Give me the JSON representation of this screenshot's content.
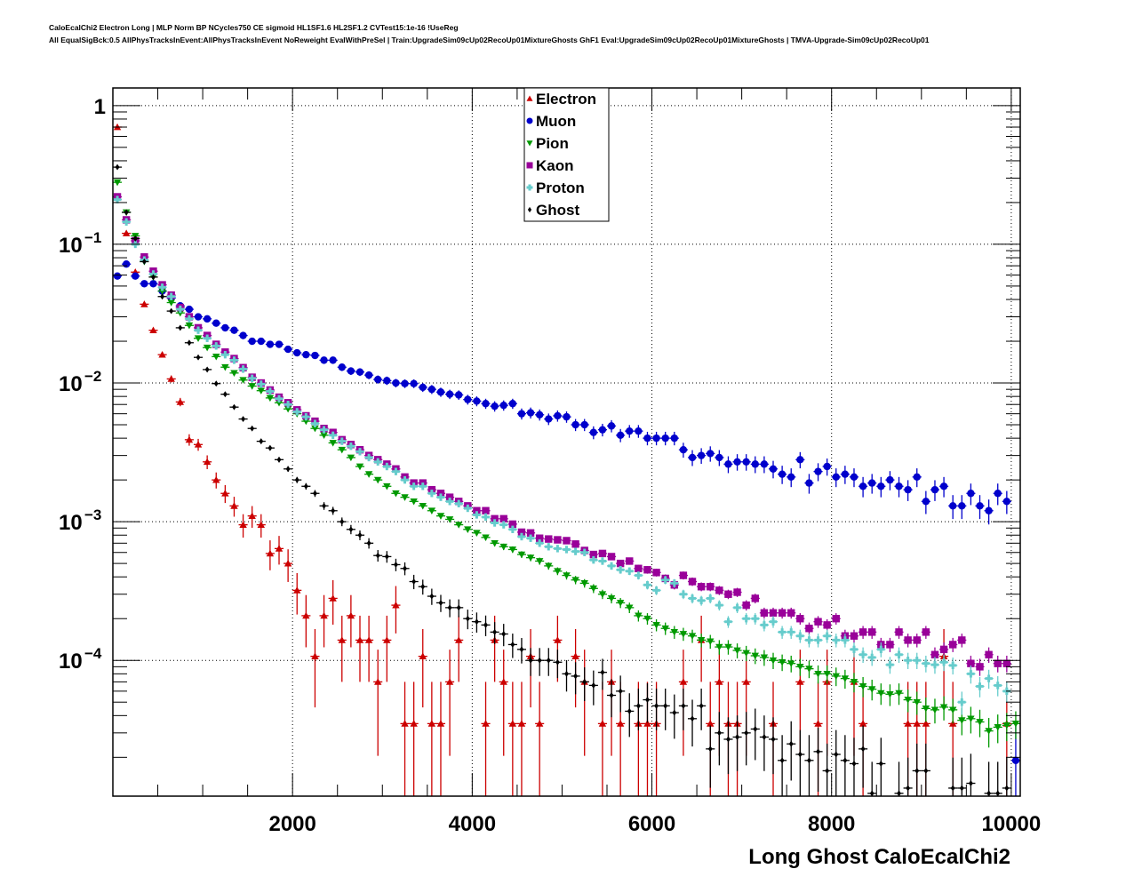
{
  "header": {
    "line1": "CaloEcalChi2 Electron Long | MLP Norm BP NCycles750 CE sigmoid HL1SF1.6 HL2SF1.2 CVTest15:1e-16 !UseReg",
    "line2": "All EqualSigBck:0.5 AllPhysTracksInEvent:AllPhysTracksInEvent NoReweight EvalWithPreSel | Train:UpgradeSim09cUp02RecoUp01MixtureGhosts GhF1 Eval:UpgradeSim09cUp02RecoUp01MixtureGhosts | TMVA-Upgrade-Sim09cUp02RecoUp01"
  },
  "chart_data": {
    "type": "scatter",
    "title": "",
    "xlabel": "Long Ghost CaloEcalChi2",
    "ylabel": "",
    "yscale": "log",
    "xlim": [
      0,
      10100
    ],
    "ylim": [
      1.05e-05,
      1.34
    ],
    "grid": true,
    "legend_position": "top-center",
    "bin_width": 100,
    "x_ticks": [
      {
        "value": 2000,
        "label": "2000"
      },
      {
        "value": 4000,
        "label": "4000"
      },
      {
        "value": 6000,
        "label": "6000"
      },
      {
        "value": 8000,
        "label": "8000"
      },
      {
        "value": 10000,
        "label": "10000"
      }
    ],
    "y_ticks": [
      {
        "value": 1,
        "base": "1",
        "exp": ""
      },
      {
        "value": 0.1,
        "base": "10",
        "exp": "−1"
      },
      {
        "value": 0.01,
        "base": "10",
        "exp": "−2"
      },
      {
        "value": 0.001,
        "base": "10",
        "exp": "−3"
      },
      {
        "value": 0.0001,
        "base": "10",
        "exp": "−4"
      }
    ],
    "series": [
      {
        "name": "Electron",
        "color": "#cc0000",
        "marker": "triangle-up",
        "values": [
          0.7,
          0.12,
          0.063,
          0.037,
          0.024,
          0.016,
          0.0107,
          0.0073,
          0.0039,
          0.0036,
          0.0027,
          0.002,
          0.0016,
          0.0013,
          0.00095,
          0.0011,
          0.00095,
          0.00059,
          0.00064,
          0.0005,
          0.00032,
          0.00021,
          0.000107,
          0.00021,
          0.00028,
          0.00014,
          0.00021,
          0.00014,
          0.00014,
          7e-05,
          0.00014,
          0.00025,
          3.5e-05,
          3.5e-05,
          0.000107,
          3.5e-05,
          3.5e-05,
          7e-05,
          0.00014,
          null,
          null,
          3.5e-05,
          0.00014,
          7e-05,
          3.5e-05,
          3.5e-05,
          0.000107,
          3.5e-05,
          null,
          0.00014,
          null,
          0.000107,
          7e-05,
          null,
          3.5e-05,
          7e-05,
          3.5e-05,
          null,
          3.5e-05,
          3.5e-05,
          3.5e-05,
          null,
          null,
          7e-05,
          null,
          0.00014,
          3.5e-05,
          7e-05,
          3.5e-05,
          3.5e-05,
          7e-05,
          null,
          null,
          3.5e-05,
          null,
          null,
          7e-05,
          null,
          3.5e-05,
          7e-05,
          null,
          null,
          7e-05,
          3.5e-05,
          null,
          null,
          null,
          null,
          3.5e-05,
          3.5e-05,
          3.5e-05,
          null,
          0.000107,
          3.5e-05,
          null,
          null,
          null,
          null,
          null,
          3.5e-05,
          null
        ]
      },
      {
        "name": "Muon",
        "color": "#0000cc",
        "marker": "circle",
        "values": [
          0.059,
          0.072,
          0.059,
          0.052,
          0.052,
          0.046,
          0.041,
          0.036,
          0.034,
          0.03,
          0.029,
          0.027,
          0.025,
          0.024,
          0.022,
          0.02,
          0.02,
          0.019,
          0.019,
          0.0175,
          0.0165,
          0.016,
          0.0158,
          0.0146,
          0.0146,
          0.013,
          0.0122,
          0.012,
          0.0114,
          0.0106,
          0.0104,
          0.01,
          0.0099,
          0.0099,
          0.0093,
          0.009,
          0.0086,
          0.0083,
          0.0082,
          0.0076,
          0.0074,
          0.0071,
          0.0068,
          0.0069,
          0.0071,
          0.006,
          0.0061,
          0.0059,
          0.0055,
          0.0058,
          0.0057,
          0.005,
          0.005,
          0.0044,
          0.0046,
          0.0049,
          0.0042,
          0.0045,
          0.0045,
          0.004,
          0.004,
          0.004,
          0.004,
          0.0033,
          0.0029,
          0.003,
          0.0031,
          0.0029,
          0.0026,
          0.0027,
          0.0027,
          0.0026,
          0.0026,
          0.0024,
          0.0022,
          0.0021,
          0.0028,
          0.0019,
          0.0023,
          0.0025,
          0.0021,
          0.0022,
          0.0021,
          0.0018,
          0.0019,
          0.0018,
          0.002,
          0.0018,
          0.0017,
          0.0021,
          0.0014,
          0.0017,
          0.0018,
          0.0013,
          0.0013,
          0.0016,
          0.0013,
          0.0012,
          0.0016,
          0.0014,
          1.9e-05
        ]
      },
      {
        "name": "Pion",
        "color": "#009900",
        "marker": "triangle-down",
        "values": [
          0.28,
          0.17,
          0.115,
          0.075,
          0.058,
          0.046,
          0.038,
          0.032,
          0.026,
          0.021,
          0.018,
          0.0155,
          0.013,
          0.0118,
          0.0105,
          0.0095,
          0.0088,
          0.0078,
          0.0072,
          0.0065,
          0.006,
          0.0053,
          0.0047,
          0.0042,
          0.0037,
          0.0033,
          0.0029,
          0.0025,
          0.0022,
          0.002,
          0.0018,
          0.0016,
          0.0015,
          0.0014,
          0.0013,
          0.0012,
          0.0011,
          0.00104,
          0.00095,
          0.00088,
          0.00083,
          0.00077,
          0.0007,
          0.00066,
          0.00063,
          0.00058,
          0.00055,
          0.00052,
          0.00048,
          0.00044,
          0.00041,
          0.00038,
          0.00036,
          0.00033,
          0.0003,
          0.00028,
          0.00026,
          0.00024,
          0.00021,
          0.0002,
          0.00018,
          0.00017,
          0.00016,
          0.000155,
          0.00015,
          0.00014,
          0.000137,
          0.000125,
          0.000125,
          0.000118,
          0.000113,
          0.000108,
          0.000105,
          0.0001,
          9.7e-05,
          9.5e-05,
          9e-05,
          8.7e-05,
          8e-05,
          8e-05,
          7.7e-05,
          7.4e-05,
          7e-05,
          6.5e-05,
          6.2e-05,
          5.8e-05,
          5.7e-05,
          5.8e-05,
          5.2e-05,
          5e-05,
          4.5e-05,
          4.4e-05,
          4.6e-05,
          4.4e-05,
          3.7e-05,
          3.8e-05,
          3.6e-05,
          3.1e-05,
          3.3e-05,
          3.4e-05,
          3.5e-05
        ]
      },
      {
        "name": "Kaon",
        "color": "#990099",
        "marker": "square",
        "values": [
          0.22,
          0.15,
          0.106,
          0.081,
          0.064,
          0.051,
          0.043,
          0.035,
          0.03,
          0.025,
          0.022,
          0.019,
          0.0167,
          0.015,
          0.0129,
          0.011,
          0.01,
          0.0089,
          0.0079,
          0.0072,
          0.0064,
          0.0058,
          0.0053,
          0.0047,
          0.0044,
          0.0039,
          0.0036,
          0.0033,
          0.003,
          0.0028,
          0.0026,
          0.0024,
          0.0021,
          0.0019,
          0.0019,
          0.0017,
          0.0016,
          0.0015,
          0.0014,
          0.0013,
          0.0012,
          0.0012,
          0.00105,
          0.00105,
          0.00096,
          0.00084,
          0.00083,
          0.00076,
          0.00075,
          0.00074,
          0.00073,
          0.00069,
          0.00062,
          0.00058,
          0.00059,
          0.00056,
          0.0005,
          0.00052,
          0.00046,
          0.00045,
          0.00043,
          0.00039,
          0.00035,
          0.00041,
          0.00037,
          0.00034,
          0.00034,
          0.00032,
          0.0003,
          0.00031,
          0.00025,
          0.00028,
          0.00022,
          0.00022,
          0.00022,
          0.00022,
          0.0002,
          0.00017,
          0.00019,
          0.00018,
          0.0002,
          0.00015,
          0.00015,
          0.00016,
          0.00016,
          0.00013,
          0.00013,
          0.00016,
          0.00014,
          0.00014,
          0.00016,
          0.00011,
          0.00012,
          0.00013,
          0.00014,
          9.5e-05,
          9e-05,
          0.00011,
          9.5e-05,
          9.5e-05,
          null
        ]
      },
      {
        "name": "Proton",
        "color": "#66cccc",
        "marker": "cross",
        "values": [
          0.21,
          0.145,
          0.1,
          0.077,
          0.061,
          0.049,
          0.042,
          0.034,
          0.029,
          0.024,
          0.021,
          0.0185,
          0.016,
          0.0146,
          0.0126,
          0.0108,
          0.0098,
          0.0087,
          0.0077,
          0.007,
          0.0062,
          0.0057,
          0.0051,
          0.0046,
          0.0042,
          0.0038,
          0.0035,
          0.0032,
          0.0029,
          0.0027,
          0.0025,
          0.0023,
          0.002,
          0.0018,
          0.0018,
          0.0016,
          0.0015,
          0.0014,
          0.00135,
          0.00125,
          0.00112,
          0.00108,
          0.00098,
          0.00095,
          0.00088,
          0.00078,
          0.00076,
          0.0007,
          0.00066,
          0.00064,
          0.00063,
          0.00061,
          0.0006,
          0.00053,
          0.00052,
          0.00048,
          0.00045,
          0.00044,
          0.00041,
          0.00035,
          0.00032,
          0.00038,
          0.00036,
          0.0003,
          0.00028,
          0.00027,
          0.00028,
          0.00025,
          0.00019,
          0.00024,
          0.0002,
          0.0002,
          0.00018,
          0.00019,
          0.00016,
          0.00016,
          0.00015,
          0.00014,
          0.00014,
          0.00015,
          0.00014,
          0.00014,
          0.00012,
          0.00011,
          0.000105,
          0.00012,
          9.3e-05,
          0.00011,
          0.0001,
          0.0001,
          9.5e-05,
          9.3e-05,
          9.7e-05,
          9.2e-05,
          5e-05,
          8e-05,
          6.5e-05,
          7.4e-05,
          6.6e-05,
          6e-05,
          null
        ]
      },
      {
        "name": "Ghost",
        "color": "#000000",
        "marker": "diamond",
        "values": [
          0.36,
          0.17,
          0.11,
          0.075,
          0.058,
          0.042,
          0.033,
          0.025,
          0.0195,
          0.0153,
          0.0125,
          0.0099,
          0.0083,
          0.0067,
          0.0055,
          0.0047,
          0.0038,
          0.0034,
          0.0028,
          0.0024,
          0.002,
          0.0018,
          0.0016,
          0.0013,
          0.0012,
          0.001,
          0.00088,
          0.0008,
          0.0007,
          0.00057,
          0.00056,
          0.00049,
          0.00046,
          0.00037,
          0.00034,
          0.00029,
          0.00026,
          0.00024,
          0.00024,
          0.0002,
          0.00019,
          0.00018,
          0.00016,
          0.000155,
          0.00013,
          0.00012,
          0.0001,
          0.0001,
          0.0001,
          9.7e-05,
          8e-05,
          7.7e-05,
          7e-05,
          6.6e-05,
          8.2e-05,
          5.6e-05,
          6e-05,
          4.3e-05,
          4.7e-05,
          5.2e-05,
          4.7e-05,
          4.7e-05,
          4.2e-05,
          4.7e-05,
          3.8e-05,
          4.7e-05,
          2.3e-05,
          3e-05,
          2.7e-05,
          2.8e-05,
          3e-05,
          3.2e-05,
          2.8e-05,
          2.7e-05,
          1.9e-05,
          2.5e-05,
          2.1e-05,
          1.9e-05,
          2.2e-05,
          1.6e-05,
          2.1e-05,
          1.9e-05,
          1.8e-05,
          2.3e-05,
          1.1e-05,
          1.8e-05,
          null,
          1.1e-05,
          1.2e-05,
          1.6e-05,
          1.6e-05,
          null,
          null,
          1.2e-05,
          1.2e-05,
          1.3e-05,
          null,
          1.1e-05,
          1.1e-05,
          1.2e-05,
          null
        ]
      }
    ]
  }
}
